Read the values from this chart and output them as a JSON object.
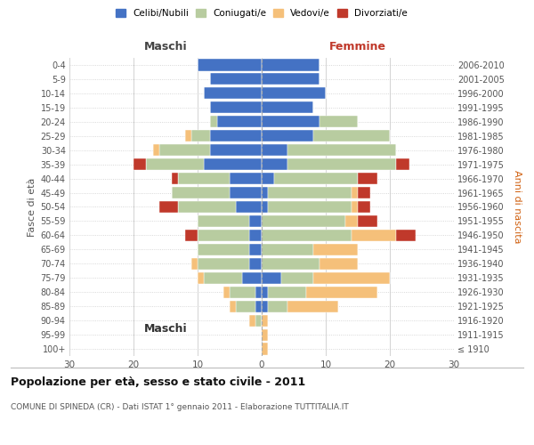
{
  "age_groups": [
    "100+",
    "95-99",
    "90-94",
    "85-89",
    "80-84",
    "75-79",
    "70-74",
    "65-69",
    "60-64",
    "55-59",
    "50-54",
    "45-49",
    "40-44",
    "35-39",
    "30-34",
    "25-29",
    "20-24",
    "15-19",
    "10-14",
    "5-9",
    "0-4"
  ],
  "birth_years": [
    "≤ 1910",
    "1911-1915",
    "1916-1920",
    "1921-1925",
    "1926-1930",
    "1931-1935",
    "1936-1940",
    "1941-1945",
    "1946-1950",
    "1951-1955",
    "1956-1960",
    "1961-1965",
    "1966-1970",
    "1971-1975",
    "1976-1980",
    "1981-1985",
    "1986-1990",
    "1991-1995",
    "1996-2000",
    "2001-2005",
    "2006-2010"
  ],
  "maschi_celibi": [
    0,
    0,
    0,
    1,
    1,
    3,
    2,
    2,
    2,
    2,
    4,
    5,
    5,
    9,
    8,
    8,
    7,
    8,
    9,
    8,
    10
  ],
  "maschi_coniugati": [
    0,
    0,
    1,
    3,
    4,
    6,
    8,
    8,
    8,
    8,
    9,
    9,
    8,
    9,
    8,
    3,
    1,
    0,
    0,
    0,
    0
  ],
  "maschi_vedovi": [
    0,
    0,
    1,
    1,
    1,
    1,
    1,
    0,
    0,
    0,
    0,
    0,
    0,
    0,
    1,
    1,
    0,
    0,
    0,
    0,
    0
  ],
  "maschi_divorziati": [
    0,
    0,
    0,
    0,
    0,
    0,
    0,
    0,
    2,
    0,
    3,
    0,
    1,
    2,
    0,
    0,
    0,
    0,
    0,
    0,
    0
  ],
  "femmine_celibi": [
    0,
    0,
    0,
    1,
    1,
    3,
    0,
    0,
    0,
    0,
    1,
    1,
    2,
    4,
    4,
    8,
    9,
    8,
    10,
    9,
    9
  ],
  "femmine_coniugati": [
    0,
    0,
    0,
    3,
    6,
    5,
    9,
    8,
    14,
    13,
    13,
    13,
    13,
    17,
    17,
    12,
    6,
    0,
    0,
    0,
    0
  ],
  "femmine_vedovi": [
    1,
    1,
    1,
    8,
    11,
    12,
    6,
    7,
    7,
    2,
    1,
    1,
    0,
    0,
    0,
    0,
    0,
    0,
    0,
    0,
    0
  ],
  "femmine_divorziati": [
    0,
    0,
    0,
    0,
    0,
    0,
    0,
    0,
    3,
    3,
    2,
    2,
    3,
    2,
    0,
    0,
    0,
    0,
    0,
    0,
    0
  ],
  "color_celibi": "#4472c4",
  "color_coniugati": "#b8cca0",
  "color_vedovi": "#f5c07a",
  "color_divorziati": "#c0392b",
  "title": "Popolazione per età, sesso e stato civile - 2011",
  "subtitle": "COMUNE DI SPINEDA (CR) - Dati ISTAT 1° gennaio 2011 - Elaborazione TUTTITALIA.IT",
  "xlabel_maschi": "Maschi",
  "xlabel_femmine": "Femmine",
  "ylabel_left": "Fasce di età",
  "ylabel_right": "Anni di nascita",
  "xlim": 30,
  "background_color": "#ffffff",
  "grid_color": "#cccccc"
}
